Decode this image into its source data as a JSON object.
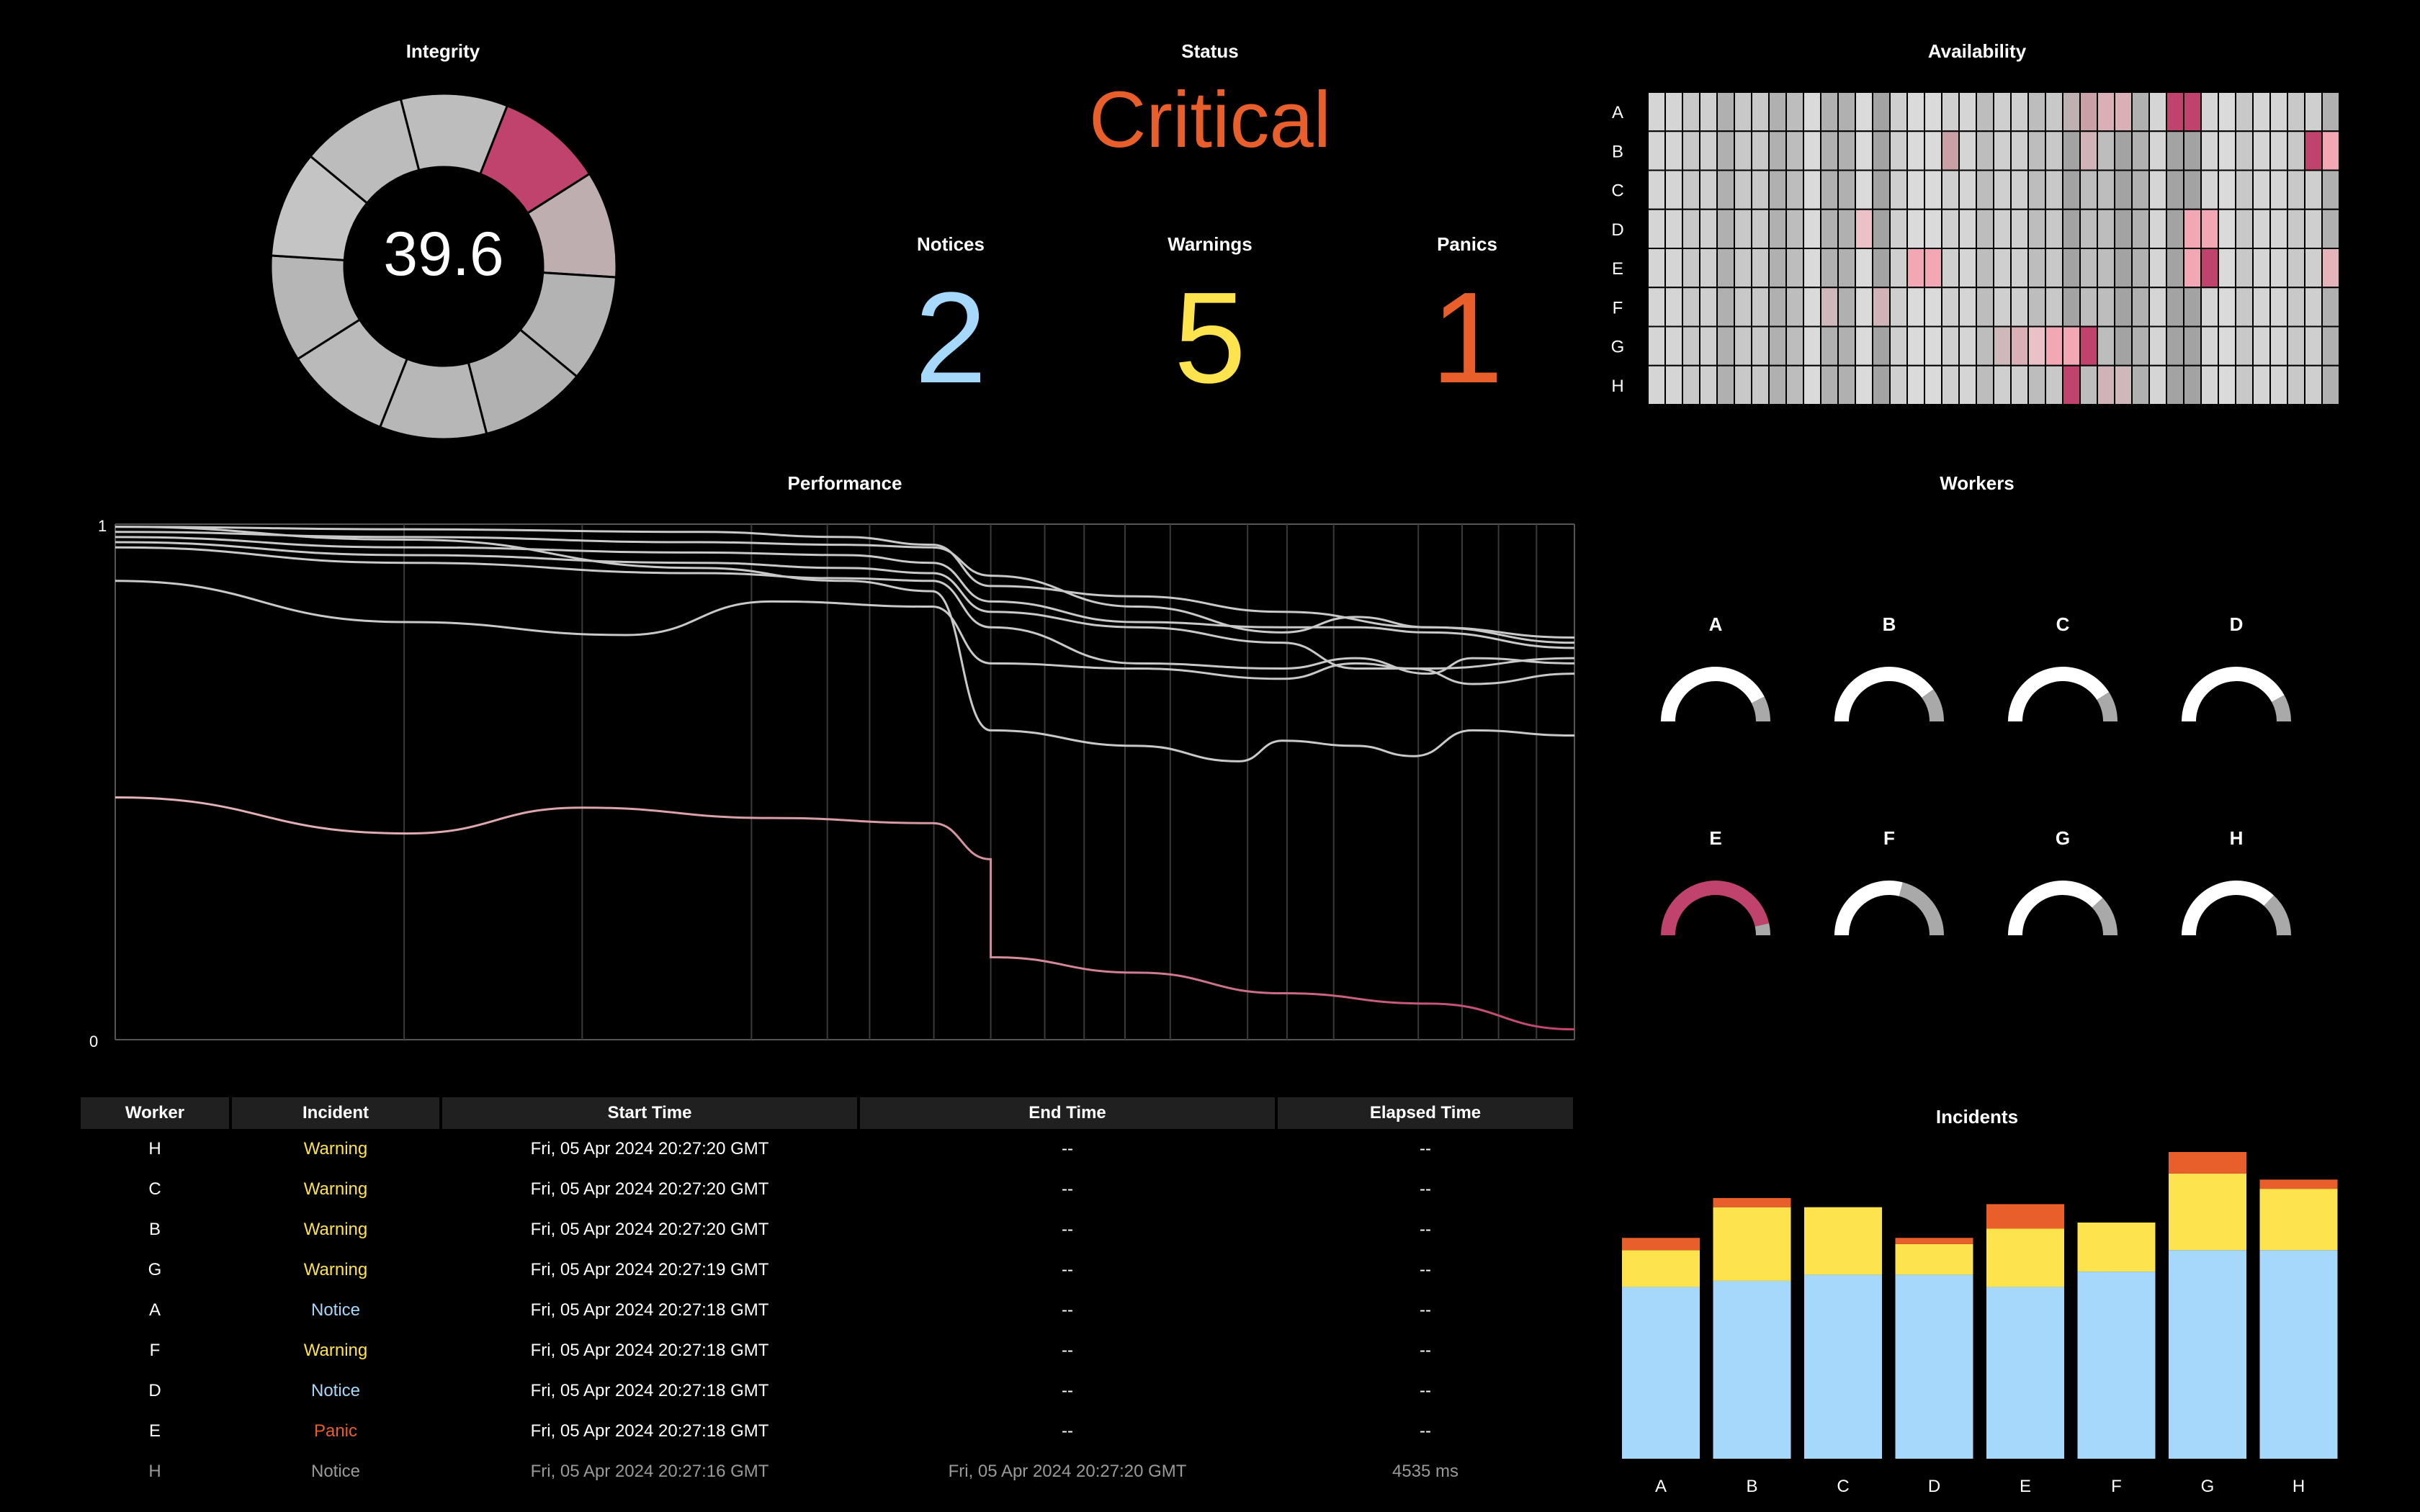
{
  "integrity": {
    "title": "Integrity",
    "value": "39.6",
    "segments": 10,
    "highlight_color": "#c0436e"
  },
  "status": {
    "title": "Status",
    "value": "Critical",
    "color": "#e95f2c",
    "counters": [
      {
        "label": "Notices",
        "value": "2",
        "color": "#a6d8fb"
      },
      {
        "label": "Warnings",
        "value": "5",
        "color": "#fde34e"
      },
      {
        "label": "Panics",
        "value": "1",
        "color": "#e95f2c"
      }
    ]
  },
  "availability": {
    "title": "Availability",
    "rows": [
      "A",
      "B",
      "C",
      "D",
      "E",
      "F",
      "G",
      "H"
    ],
    "columns": 40
  },
  "performance": {
    "title": "Performance",
    "y_ticks": [
      "1",
      "0"
    ]
  },
  "workers": {
    "title": "Workers",
    "items": [
      {
        "label": "A",
        "fill": 0.85,
        "color": "#ffffff"
      },
      {
        "label": "B",
        "fill": 0.8,
        "color": "#ffffff"
      },
      {
        "label": "C",
        "fill": 0.82,
        "color": "#ffffff"
      },
      {
        "label": "D",
        "fill": 0.84,
        "color": "#ffffff"
      },
      {
        "label": "E",
        "fill": 0.93,
        "color": "#c0436e"
      },
      {
        "label": "F",
        "fill": 0.58,
        "color": "#ffffff"
      },
      {
        "label": "G",
        "fill": 0.76,
        "color": "#ffffff"
      },
      {
        "label": "H",
        "fill": 0.74,
        "color": "#ffffff"
      }
    ]
  },
  "incidents_table": {
    "headers": [
      "Worker",
      "Incident",
      "Start Time",
      "End Time",
      "Elapsed Time"
    ],
    "rows": [
      {
        "worker": "H",
        "incident": "Warning",
        "start": "Fri, 05 Apr 2024 20:27:20 GMT",
        "end": "--",
        "elapsed": "--"
      },
      {
        "worker": "C",
        "incident": "Warning",
        "start": "Fri, 05 Apr 2024 20:27:20 GMT",
        "end": "--",
        "elapsed": "--"
      },
      {
        "worker": "B",
        "incident": "Warning",
        "start": "Fri, 05 Apr 2024 20:27:20 GMT",
        "end": "--",
        "elapsed": "--"
      },
      {
        "worker": "G",
        "incident": "Warning",
        "start": "Fri, 05 Apr 2024 20:27:19 GMT",
        "end": "--",
        "elapsed": "--"
      },
      {
        "worker": "A",
        "incident": "Notice",
        "start": "Fri, 05 Apr 2024 20:27:18 GMT",
        "end": "--",
        "elapsed": "--"
      },
      {
        "worker": "F",
        "incident": "Warning",
        "start": "Fri, 05 Apr 2024 20:27:18 GMT",
        "end": "--",
        "elapsed": "--"
      },
      {
        "worker": "D",
        "incident": "Notice",
        "start": "Fri, 05 Apr 2024 20:27:18 GMT",
        "end": "--",
        "elapsed": "--"
      },
      {
        "worker": "E",
        "incident": "Panic",
        "start": "Fri, 05 Apr 2024 20:27:18 GMT",
        "end": "--",
        "elapsed": "--"
      },
      {
        "worker": "H",
        "incident": "Notice",
        "start": "Fri, 05 Apr 2024 20:27:16 GMT",
        "end": "Fri, 05 Apr 2024 20:27:20 GMT",
        "elapsed": "4535 ms",
        "faded": true
      }
    ],
    "incident_colors": {
      "Warning": "#fde34e",
      "Notice": "#a6d8fb",
      "Panic": "#e95f2c"
    }
  },
  "chart_data": {
    "type": "bar",
    "title": "Incidents",
    "categories": [
      "A",
      "B",
      "C",
      "D",
      "E",
      "F",
      "G",
      "H"
    ],
    "ylim": [
      0,
      100
    ],
    "series": [
      {
        "name": "Notice",
        "color": "#a6d8fb",
        "values": [
          56,
          58,
          60,
          60,
          56,
          61,
          68,
          68
        ]
      },
      {
        "name": "Warning",
        "color": "#fde34e",
        "values": [
          12,
          24,
          22,
          10,
          19,
          16,
          25,
          20
        ]
      },
      {
        "name": "Panic",
        "color": "#e95f2c",
        "values": [
          4,
          3,
          0,
          2,
          8,
          0,
          13,
          3
        ]
      }
    ]
  }
}
